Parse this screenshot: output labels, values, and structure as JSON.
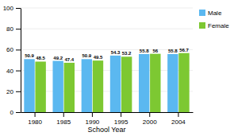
{
  "chart_data": {
    "type": "bar",
    "categories": [
      "1980",
      "1985",
      "1990",
      "1995",
      "2000",
      "2004"
    ],
    "series": [
      {
        "name": "Male",
        "color": "#5bb8f0",
        "values": [
          50.9,
          49.2,
          50.9,
          54.3,
          55.8,
          55.8
        ]
      },
      {
        "name": "Female",
        "color": "#7dc832",
        "values": [
          48.5,
          47.4,
          49.5,
          53.2,
          56,
          56.7
        ]
      }
    ],
    "x_label": "School Year",
    "ylim": [
      0,
      100
    ],
    "yticks": [
      0,
      20,
      40,
      60,
      80,
      100
    ],
    "grid": true,
    "legend": "right",
    "data_labels": true
  }
}
